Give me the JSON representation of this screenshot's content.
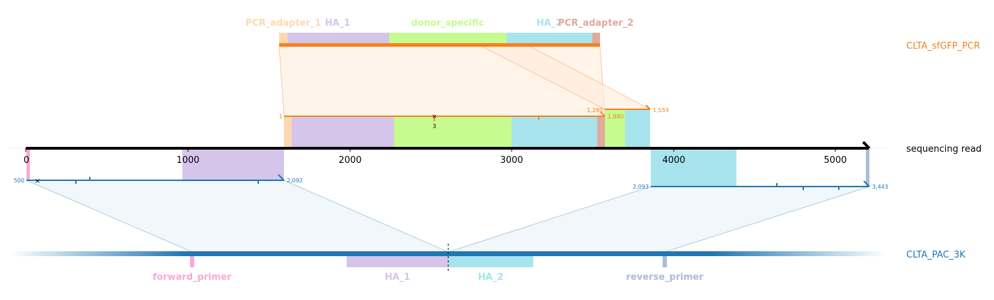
{
  "colors": {
    "pcr": "#f5821f",
    "pac": "#1f77b4",
    "pcr_adapter": "#fbd9b0",
    "ha_1": "#d5c5ea",
    "donor_specific": "#c6fb8f",
    "ha_2": "#a8e4ee",
    "pcr_adapter_2": "#e0aa9c",
    "forward_primer": "#f8a8d8",
    "reverse_primer": "#a9bcd9",
    "axis": "#000000"
  },
  "axis": {
    "label": "sequencing read",
    "ticks": [
      "0",
      "1000",
      "2000",
      "3000",
      "4000",
      "5000"
    ]
  },
  "pcr_track": {
    "label": "CLTA_sfGFP_PCR",
    "features": {
      "adapter_1": "PCR_adapter_1",
      "ha_1": "HA_1",
      "donor": "donor_specific",
      "ha_2": "HA_2",
      "adapter_2": "PCR_adapter_2"
    }
  },
  "pac_track": {
    "label": "CLTA_PAC_3K",
    "features": {
      "forward": "forward_primer",
      "ha_1": "HA_1",
      "ha_2": "HA_2",
      "reverse": "reverse_primer"
    }
  },
  "alignments": {
    "pcr_a": {
      "start": "1",
      "end": "1,280",
      "end_alt": "1,980",
      "marker": "3"
    },
    "pcr_b": {
      "end": "1,559"
    },
    "pac_a": {
      "start": "500",
      "end": "2,092"
    },
    "pac_b": {
      "start": "2,093",
      "end": "3,443"
    }
  }
}
